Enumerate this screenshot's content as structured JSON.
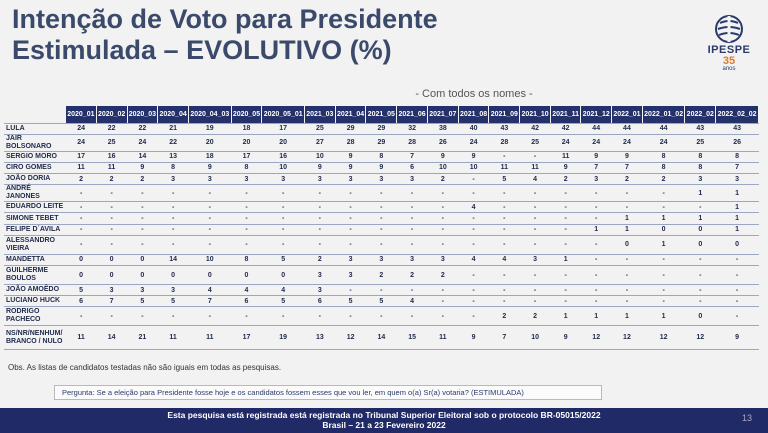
{
  "title_line1": "Intenção de Voto para Presidente",
  "title_line2": "Estimulada – EVOLUTIVO (%)",
  "logo": {
    "brand": "IPESPE",
    "years": "35",
    "years_sub": "anos",
    "icon": "globe-icon"
  },
  "subtitle": "- Com todos os nomes -",
  "table": {
    "columns": [
      "2020_01",
      "2020_02",
      "2020_03",
      "2020_04",
      "2020_04_03",
      "2020_05",
      "2020_05_01",
      "2021_03",
      "2021_04",
      "2021_05",
      "2021_06",
      "2021_07",
      "2021_08",
      "2021_09",
      "2021_10",
      "2021_11",
      "2021_12",
      "2022_01",
      "2022_01_02",
      "2022_02",
      "2022_02_02"
    ],
    "rows": [
      {
        "name": "LULA",
        "values": [
          "24",
          "22",
          "22",
          "21",
          "19",
          "18",
          "17",
          "25",
          "29",
          "29",
          "32",
          "38",
          "40",
          "43",
          "42",
          "42",
          "44",
          "44",
          "44",
          "43",
          "43"
        ]
      },
      {
        "name": "JAIR BOLSONARO",
        "values": [
          "24",
          "25",
          "24",
          "22",
          "20",
          "20",
          "20",
          "27",
          "28",
          "29",
          "28",
          "26",
          "24",
          "28",
          "25",
          "24",
          "24",
          "24",
          "24",
          "25",
          "26"
        ]
      },
      {
        "name": "SERGIO MORO",
        "values": [
          "17",
          "16",
          "14",
          "13",
          "18",
          "17",
          "16",
          "10",
          "9",
          "8",
          "7",
          "9",
          "9",
          "-",
          "-",
          "11",
          "9",
          "9",
          "8",
          "8",
          "8"
        ]
      },
      {
        "name": "CIRO GOMES",
        "values": [
          "11",
          "11",
          "9",
          "8",
          "9",
          "8",
          "10",
          "9",
          "9",
          "9",
          "6",
          "10",
          "10",
          "11",
          "11",
          "9",
          "7",
          "7",
          "8",
          "8",
          "7"
        ]
      },
      {
        "name": "JOÃO DORIA",
        "values": [
          "2",
          "2",
          "2",
          "3",
          "3",
          "3",
          "3",
          "3",
          "3",
          "3",
          "3",
          "2",
          "-",
          "5",
          "4",
          "2",
          "3",
          "2",
          "2",
          "3",
          "3"
        ]
      },
      {
        "name": "ANDRÉ JANONES",
        "values": [
          "-",
          "-",
          "-",
          "-",
          "-",
          "-",
          "-",
          "-",
          "-",
          "-",
          "-",
          "-",
          "-",
          "-",
          "-",
          "-",
          "-",
          "-",
          "-",
          "1",
          "1"
        ]
      },
      {
        "name": "EDUARDO LEITE",
        "values": [
          "-",
          "-",
          "-",
          "-",
          "-",
          "-",
          "-",
          "-",
          "-",
          "-",
          "-",
          "-",
          "4",
          "-",
          "-",
          "-",
          "-",
          "-",
          "-",
          "-",
          "1"
        ]
      },
      {
        "name": "SIMONE TEBET",
        "values": [
          "-",
          "-",
          "-",
          "-",
          "-",
          "-",
          "-",
          "-",
          "-",
          "-",
          "-",
          "-",
          "-",
          "-",
          "-",
          "-",
          "-",
          "1",
          "1",
          "1",
          "1"
        ]
      },
      {
        "name": "FELIPE D´AVILA",
        "values": [
          "-",
          "-",
          "-",
          "-",
          "-",
          "-",
          "-",
          "-",
          "-",
          "-",
          "-",
          "-",
          "-",
          "-",
          "-",
          "-",
          "1",
          "1",
          "0",
          "0",
          "1"
        ]
      },
      {
        "name": "ALESSANDRO VIEIRA",
        "values": [
          "-",
          "-",
          "-",
          "-",
          "-",
          "-",
          "-",
          "-",
          "-",
          "-",
          "-",
          "-",
          "-",
          "-",
          "-",
          "-",
          "-",
          "0",
          "1",
          "0",
          "0"
        ],
        "tall": true
      },
      {
        "name": "MANDETTA",
        "values": [
          "0",
          "0",
          "0",
          "14",
          "10",
          "8",
          "5",
          "2",
          "3",
          "3",
          "3",
          "3",
          "4",
          "4",
          "3",
          "1",
          "-",
          "-",
          "-",
          "-",
          "-"
        ]
      },
      {
        "name": "GUILHERME BOULOS",
        "values": [
          "0",
          "0",
          "0",
          "0",
          "0",
          "0",
          "0",
          "3",
          "3",
          "2",
          "2",
          "2",
          "-",
          "-",
          "-",
          "-",
          "-",
          "-",
          "-",
          "-",
          "-"
        ],
        "tall": true
      },
      {
        "name": "JOÃO AMOÊDO",
        "values": [
          "5",
          "3",
          "3",
          "3",
          "4",
          "4",
          "4",
          "3",
          "-",
          "-",
          "-",
          "-",
          "-",
          "-",
          "-",
          "-",
          "-",
          "-",
          "-",
          "-",
          "-"
        ]
      },
      {
        "name": "LUCIANO HUCK",
        "values": [
          "6",
          "7",
          "5",
          "5",
          "7",
          "6",
          "5",
          "6",
          "5",
          "5",
          "4",
          "-",
          "-",
          "-",
          "-",
          "-",
          "-",
          "-",
          "-",
          "-",
          "-"
        ]
      },
      {
        "name": "RODRIGO PACHECO",
        "values": [
          "-",
          "-",
          "-",
          "-",
          "-",
          "-",
          "-",
          "-",
          "-",
          "-",
          "-",
          "-",
          "-",
          "2",
          "2",
          "1",
          "1",
          "1",
          "1",
          "0",
          "-"
        ],
        "tall": true
      },
      {
        "name": "NS/NR/NENHUM/ BRANCO / NULO",
        "values": [
          "11",
          "14",
          "21",
          "11",
          "11",
          "17",
          "19",
          "13",
          "12",
          "14",
          "15",
          "11",
          "9",
          "7",
          "10",
          "9",
          "12",
          "12",
          "12",
          "12",
          "9"
        ],
        "extra": true
      }
    ]
  },
  "obs": "Obs. As listas de candidatos testadas não são iguais em todas as pesquisas.",
  "question": "Pergunta:  Se a eleição para Presidente fosse hoje e os candidatos fossem esses que vou ler, em quem o(a) Sr(a) votaria? (ESTIMULADA)",
  "footer_line1": "Esta pesquisa está registrada está registrada no Tribunal Superior Eleitoral sob o protocolo BR-05015/2022",
  "footer_line2": "Brasil – 21 a 23 Fevereiro 2022",
  "page_number": "13"
}
